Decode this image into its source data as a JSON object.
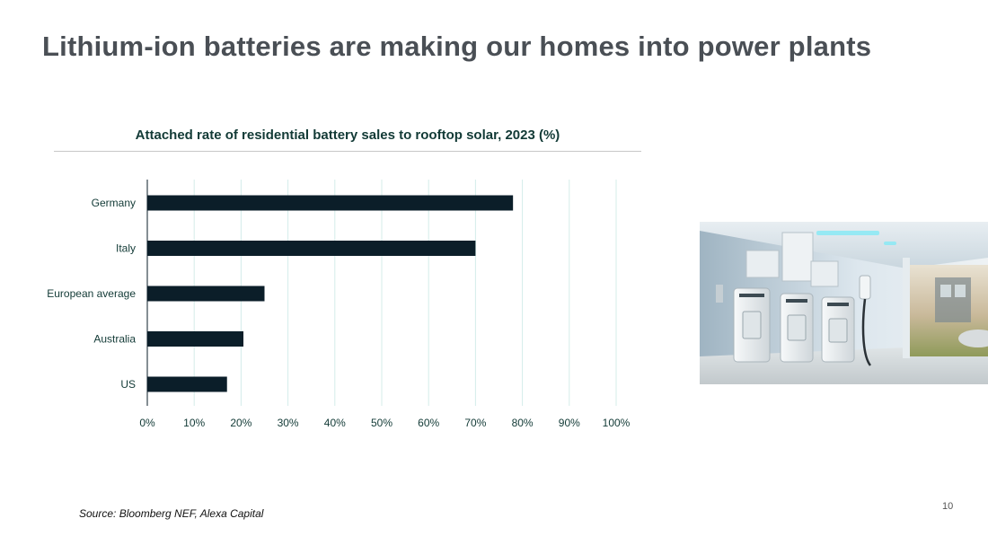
{
  "slide": {
    "title": "Lithium-ion batteries are making our homes into power plants",
    "source": "Source: Bloomberg NEF, Alexa Capital",
    "page_number": "10"
  },
  "colors": {
    "bar": "#0b1e29",
    "grid": "#d4ecea",
    "axis_text": "#123a36",
    "title_text": "#4a4f55"
  },
  "chart_data": {
    "type": "bar",
    "orientation": "horizontal",
    "title": "Attached rate of residential battery sales to rooftop solar, 2023 (%)",
    "categories": [
      "Germany",
      "Italy",
      "European average",
      "Australia",
      "US"
    ],
    "values": [
      78,
      70,
      25,
      20.5,
      17
    ],
    "unit": "%",
    "xlim": [
      0,
      100
    ],
    "xticks": [
      "0%",
      "10%",
      "20%",
      "30%",
      "40%",
      "50%",
      "60%",
      "70%",
      "80%",
      "90%",
      "100%"
    ],
    "grid": true,
    "legend": "none"
  }
}
